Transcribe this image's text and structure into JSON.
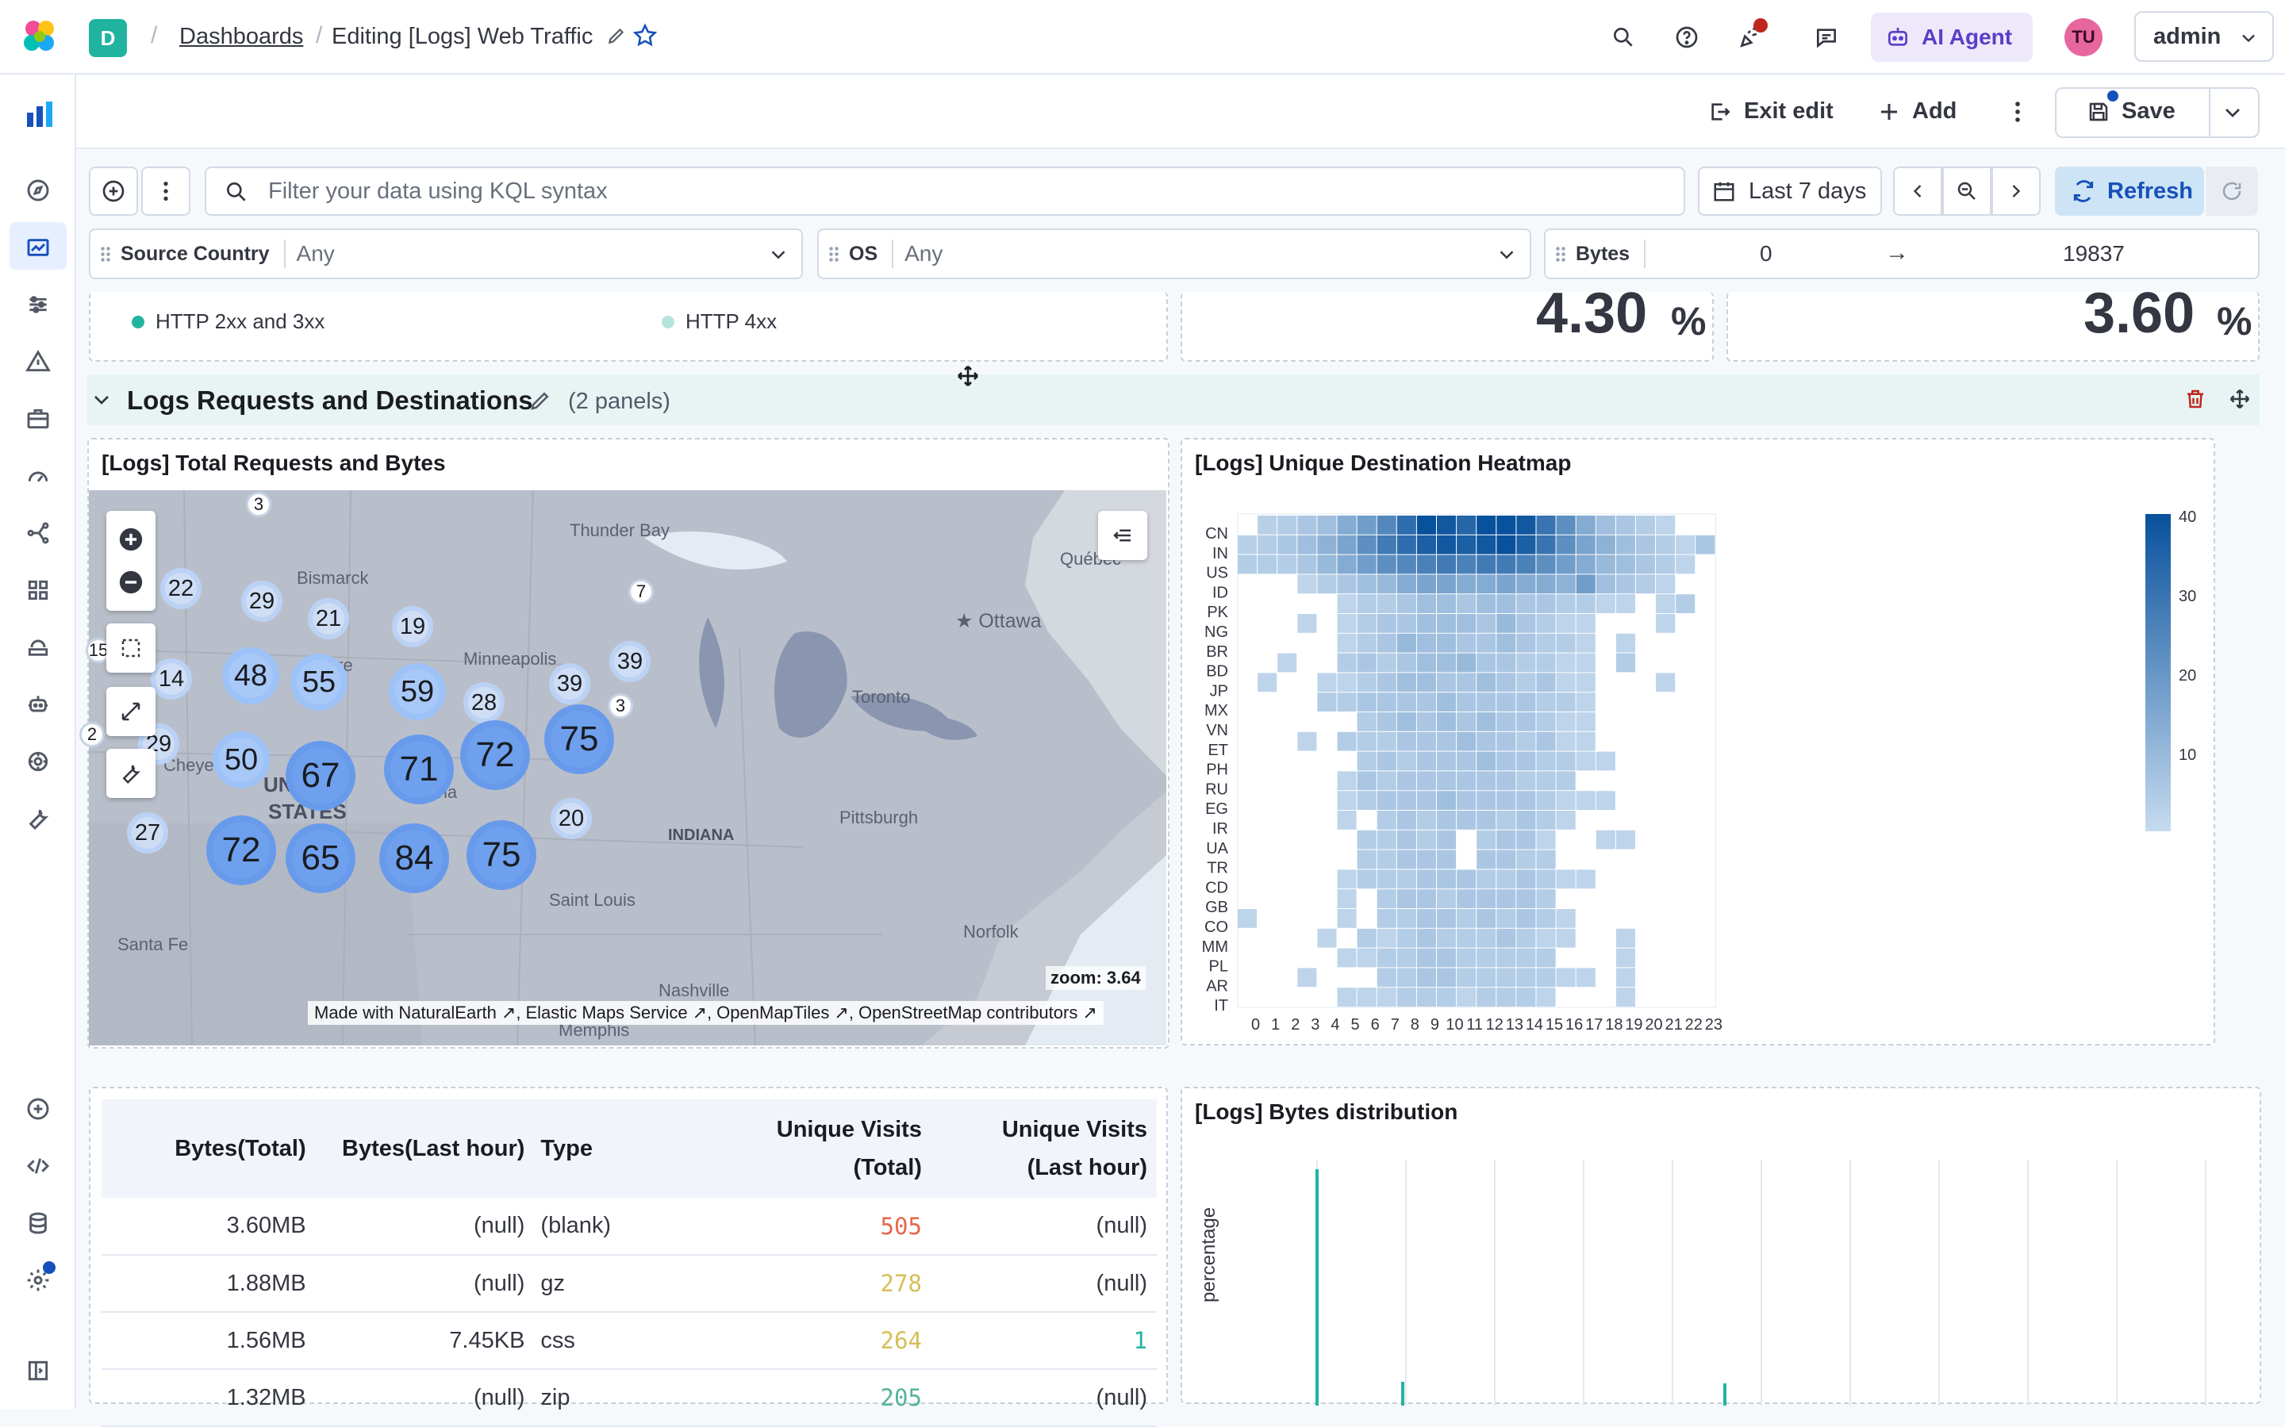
{
  "header": {
    "space_initial": "D",
    "breadcrumbs": [
      "Dashboards",
      "Editing [Logs] Web Traffic"
    ],
    "ai_agent": "AI Agent",
    "avatar": "TU",
    "space_name": "admin"
  },
  "toolbar": {
    "exit_edit": "Exit edit",
    "add": "Add",
    "save": "Save"
  },
  "query": {
    "placeholder": "Filter your data using KQL syntax",
    "time_range": "Last 7 days",
    "refresh": "Refresh"
  },
  "controls": [
    {
      "label": "Source Country",
      "value": "Any"
    },
    {
      "label": "OS",
      "value": "Any"
    },
    {
      "label": "Bytes",
      "min": "0",
      "arrow": "→",
      "max": "19837"
    }
  ],
  "top_panels": {
    "legend": [
      "HTTP 2xx and 3xx",
      "HTTP 4xx"
    ],
    "legend_colors": [
      "#20b4a0",
      "#b5e4dc"
    ],
    "metric_1": "4.30",
    "metric_2": "3.60",
    "percent": "%"
  },
  "section": {
    "title": "Logs Requests and Destinations",
    "count": "(2 panels)"
  },
  "map_panel": {
    "title": "[Logs] Total Requests and Bytes",
    "zoom": "zoom: 3.64",
    "attribution": [
      "Made with NaturalEarth",
      "Elastic Maps Service",
      "OpenMapTiles",
      "OpenStreetMap contributors"
    ],
    "places": [
      "Thunder Bay",
      "Québec",
      "Ottawa",
      "Bismarck",
      "Pierre",
      "Minneapolis",
      "Toronto",
      "Cheyenne",
      "UNITED",
      "STATES",
      "Omaha",
      "INDIANA",
      "Pittsburgh",
      "Saint Louis",
      "Norfolk",
      "Santa Fe",
      "Nashville",
      "Memphis"
    ],
    "clusters": [
      {
        "v": "3",
        "s": "t"
      },
      {
        "v": "22",
        "s": "s"
      },
      {
        "v": "29",
        "s": "s"
      },
      {
        "v": "21",
        "s": "s"
      },
      {
        "v": "19",
        "s": "s"
      },
      {
        "v": "7",
        "s": "t"
      },
      {
        "v": "15",
        "s": "t"
      },
      {
        "v": "14",
        "s": "s"
      },
      {
        "v": "48",
        "s": "m"
      },
      {
        "v": "55",
        "s": "m"
      },
      {
        "v": "59",
        "s": "m"
      },
      {
        "v": "39",
        "s": "s"
      },
      {
        "v": "39",
        "s": "s"
      },
      {
        "v": "28",
        "s": "s"
      },
      {
        "v": "3",
        "s": "t"
      },
      {
        "v": "2",
        "s": "t"
      },
      {
        "v": "29",
        "s": "s"
      },
      {
        "v": "50",
        "s": "m"
      },
      {
        "v": "72",
        "s": "l"
      },
      {
        "v": "75",
        "s": "l"
      },
      {
        "v": "67",
        "s": "l"
      },
      {
        "v": "71",
        "s": "l"
      },
      {
        "v": "20",
        "s": "s"
      },
      {
        "v": "27",
        "s": "s"
      },
      {
        "v": "72",
        "s": "l"
      },
      {
        "v": "65",
        "s": "l"
      },
      {
        "v": "84",
        "s": "l"
      },
      {
        "v": "75",
        "s": "l"
      }
    ]
  },
  "heatmap_panel": {
    "title": "[Logs] Unique Destination Heatmap",
    "countries": [
      "CN",
      "IN",
      "US",
      "ID",
      "PK",
      "NG",
      "BR",
      "BD",
      "JP",
      "MX",
      "VN",
      "ET",
      "PH",
      "RU",
      "EG",
      "IR",
      "UA",
      "TR",
      "CD",
      "GB",
      "CO",
      "MM",
      "PL",
      "AR",
      "IT"
    ],
    "hours": [
      "0",
      "1",
      "2",
      "3",
      "4",
      "5",
      "6",
      "7",
      "8",
      "9",
      "10",
      "11",
      "12",
      "13",
      "14",
      "15",
      "16",
      "17",
      "18",
      "19",
      "20",
      "21",
      "22",
      "23"
    ],
    "legend_ticks": [
      "40",
      "30",
      "20",
      "10"
    ],
    "color_low": "#c6dbef",
    "color_high": "#08519c"
  },
  "chart_data": {
    "type": "heatmap",
    "title": "[Logs] Unique Destination Heatmap",
    "y": [
      "CN",
      "IN",
      "US",
      "ID",
      "PK",
      "NG",
      "BR",
      "BD",
      "JP",
      "MX",
      "VN",
      "ET",
      "PH",
      "RU",
      "EG",
      "IR",
      "UA",
      "TR",
      "CD",
      "GB",
      "CO",
      "MM",
      "PL",
      "AR",
      "IT"
    ],
    "x": [
      "0",
      "1",
      "2",
      "3",
      "4",
      "5",
      "6",
      "7",
      "8",
      "9",
      "10",
      "11",
      "12",
      "13",
      "14",
      "15",
      "16",
      "17",
      "18",
      "19",
      "20",
      "21",
      "22",
      "23"
    ],
    "values": [
      [
        0,
        3,
        4,
        6,
        8,
        14,
        18,
        24,
        32,
        42,
        38,
        34,
        40,
        40,
        38,
        30,
        22,
        14,
        8,
        6,
        4,
        2,
        0,
        0
      ],
      [
        3,
        4,
        6,
        8,
        12,
        16,
        22,
        28,
        32,
        36,
        38,
        36,
        38,
        42,
        36,
        30,
        22,
        16,
        12,
        8,
        6,
        4,
        2,
        6
      ],
      [
        4,
        4,
        4,
        6,
        10,
        14,
        18,
        22,
        24,
        26,
        28,
        26,
        28,
        28,
        26,
        22,
        18,
        14,
        10,
        8,
        6,
        4,
        2,
        0
      ],
      [
        0,
        0,
        0,
        2,
        4,
        6,
        8,
        10,
        14,
        16,
        16,
        14,
        14,
        16,
        14,
        14,
        12,
        18,
        8,
        6,
        4,
        2,
        0,
        0
      ],
      [
        0,
        0,
        0,
        0,
        0,
        2,
        4,
        4,
        6,
        8,
        8,
        6,
        8,
        8,
        6,
        6,
        4,
        4,
        2,
        2,
        0,
        2,
        4,
        0
      ],
      [
        0,
        0,
        0,
        2,
        0,
        2,
        4,
        6,
        6,
        8,
        8,
        8,
        6,
        10,
        6,
        4,
        2,
        2,
        0,
        0,
        0,
        2,
        0,
        0
      ],
      [
        0,
        0,
        0,
        0,
        0,
        2,
        4,
        6,
        10,
        8,
        8,
        6,
        6,
        8,
        6,
        4,
        4,
        2,
        0,
        2,
        0,
        0,
        0,
        0
      ],
      [
        0,
        0,
        2,
        0,
        0,
        4,
        6,
        4,
        6,
        8,
        8,
        10,
        6,
        6,
        4,
        4,
        2,
        2,
        0,
        4,
        0,
        0,
        0,
        0
      ],
      [
        0,
        2,
        0,
        0,
        2,
        2,
        4,
        6,
        8,
        8,
        6,
        6,
        8,
        6,
        4,
        6,
        2,
        2,
        0,
        0,
        0,
        2,
        0,
        0
      ],
      [
        0,
        0,
        0,
        0,
        4,
        4,
        6,
        6,
        6,
        6,
        8,
        6,
        6,
        6,
        6,
        4,
        4,
        2,
        0,
        0,
        0,
        0,
        0,
        0
      ],
      [
        0,
        0,
        0,
        0,
        0,
        0,
        4,
        6,
        8,
        6,
        8,
        6,
        8,
        6,
        6,
        4,
        2,
        2,
        0,
        0,
        0,
        0,
        0,
        0
      ],
      [
        0,
        0,
        0,
        2,
        0,
        4,
        4,
        4,
        6,
        6,
        6,
        8,
        6,
        6,
        4,
        6,
        2,
        2,
        0,
        0,
        0,
        0,
        0,
        0
      ],
      [
        0,
        0,
        0,
        0,
        0,
        0,
        4,
        6,
        4,
        6,
        6,
        6,
        8,
        6,
        6,
        4,
        4,
        2,
        2,
        0,
        0,
        0,
        0,
        0
      ],
      [
        0,
        0,
        0,
        0,
        0,
        2,
        6,
        4,
        6,
        6,
        6,
        6,
        6,
        6,
        4,
        4,
        4,
        0,
        0,
        0,
        0,
        0,
        0,
        0
      ],
      [
        0,
        0,
        0,
        0,
        0,
        2,
        4,
        6,
        6,
        6,
        8,
        6,
        6,
        6,
        6,
        4,
        2,
        2,
        2,
        0,
        0,
        0,
        0,
        0
      ],
      [
        0,
        0,
        0,
        0,
        0,
        2,
        0,
        4,
        6,
        4,
        6,
        6,
        6,
        4,
        6,
        4,
        2,
        0,
        0,
        0,
        0,
        0,
        0,
        0
      ],
      [
        0,
        0,
        0,
        0,
        0,
        0,
        4,
        4,
        6,
        4,
        6,
        0,
        4,
        6,
        6,
        2,
        0,
        0,
        2,
        2,
        0,
        0,
        0,
        0
      ],
      [
        0,
        0,
        0,
        0,
        0,
        0,
        4,
        4,
        6,
        6,
        6,
        0,
        6,
        6,
        4,
        4,
        0,
        0,
        0,
        0,
        0,
        0,
        0,
        0
      ],
      [
        0,
        0,
        0,
        0,
        0,
        2,
        4,
        4,
        4,
        6,
        6,
        6,
        4,
        4,
        6,
        4,
        2,
        2,
        0,
        0,
        0,
        0,
        0,
        0
      ],
      [
        0,
        0,
        0,
        0,
        0,
        2,
        0,
        4,
        6,
        6,
        4,
        6,
        6,
        6,
        6,
        4,
        0,
        0,
        0,
        0,
        0,
        0,
        0,
        0
      ],
      [
        2,
        0,
        0,
        0,
        0,
        2,
        0,
        4,
        4,
        6,
        6,
        4,
        6,
        4,
        6,
        4,
        2,
        0,
        0,
        0,
        0,
        0,
        0,
        0
      ],
      [
        0,
        0,
        0,
        0,
        2,
        0,
        4,
        2,
        4,
        6,
        4,
        4,
        4,
        6,
        4,
        2,
        2,
        0,
        0,
        2,
        0,
        0,
        0,
        0
      ],
      [
        0,
        0,
        0,
        0,
        0,
        2,
        2,
        4,
        4,
        6,
        6,
        4,
        4,
        4,
        4,
        4,
        0,
        0,
        0,
        2,
        0,
        0,
        0,
        0
      ],
      [
        0,
        0,
        0,
        2,
        0,
        0,
        0,
        4,
        4,
        6,
        6,
        4,
        4,
        4,
        4,
        4,
        2,
        2,
        0,
        2,
        0,
        0,
        0,
        0
      ],
      [
        0,
        0,
        0,
        0,
        0,
        2,
        2,
        2,
        4,
        4,
        4,
        2,
        4,
        4,
        4,
        2,
        0,
        0,
        0,
        2,
        0,
        0,
        0,
        0
      ]
    ]
  },
  "table_panel": {
    "headers": [
      "Bytes(Total)",
      "Bytes(Last hour)",
      "Type",
      "Unique Visits\n(Total)",
      "Unique Visits\n(Last hour)"
    ],
    "rows": [
      {
        "bytes_total": "3.60MB",
        "bytes_hour": "(null)",
        "type": "(blank)",
        "visits_total": "505",
        "visits_hour": "(null)",
        "color": "#e7664c"
      },
      {
        "bytes_total": "1.88MB",
        "bytes_hour": "(null)",
        "type": "gz",
        "visits_total": "278",
        "visits_hour": "(null)",
        "color": "#d6bf57"
      },
      {
        "bytes_total": "1.56MB",
        "bytes_hour": "7.45KB",
        "type": "css",
        "visits_total": "264",
        "visits_hour": "1",
        "color": "#d6bf57"
      },
      {
        "bytes_total": "1.32MB",
        "bytes_hour": "(null)",
        "type": "zip",
        "visits_total": "205",
        "visits_hour": "(null)",
        "color": "#54b399"
      }
    ]
  },
  "bytes_panel": {
    "title": "[Logs] Bytes distribution",
    "ylabel": "percentage"
  }
}
